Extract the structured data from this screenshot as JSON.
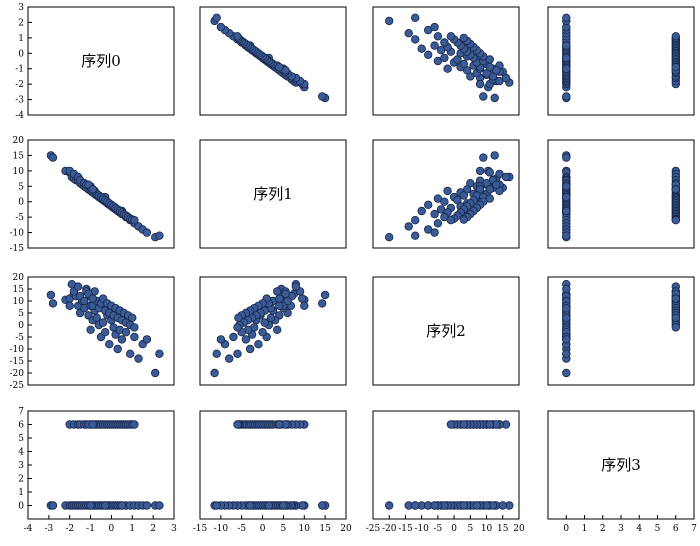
{
  "chart_data": {
    "type": "scatter",
    "layout": "pair-matrix-4x4",
    "title": "",
    "variables": [
      "序列0",
      "序列1",
      "序列2",
      "序列3"
    ],
    "grid": false,
    "ranges": [
      [
        -4,
        3
      ],
      [
        -15,
        20
      ],
      [
        -25,
        20
      ],
      [
        -1,
        7
      ]
    ],
    "ticks": [
      [
        -4,
        -3,
        -2,
        -1,
        0,
        1,
        2,
        3
      ],
      [
        -15,
        -10,
        -5,
        0,
        5,
        10,
        15,
        20
      ],
      [
        -25,
        -20,
        -15,
        -10,
        -5,
        0,
        5,
        10,
        15,
        20
      ],
      [
        0,
        1,
        2,
        3,
        4,
        5,
        6,
        7
      ]
    ],
    "point_color": "#3b5b96",
    "point_edge_color": "#16264a",
    "observations": [
      [
        -2.9,
        15.0,
        12.5,
        0
      ],
      [
        -2.8,
        14.3,
        9.0,
        0
      ],
      [
        -2.2,
        10.0,
        10.5,
        0
      ],
      [
        -2.0,
        9.5,
        11.0,
        0
      ],
      [
        -1.9,
        8.0,
        17.0,
        0
      ],
      [
        -1.8,
        7.5,
        13.0,
        0
      ],
      [
        -1.7,
        7.0,
        12.0,
        0
      ],
      [
        -1.6,
        6.8,
        8.0,
        0
      ],
      [
        -1.5,
        6.0,
        5.0,
        0
      ],
      [
        -1.4,
        5.5,
        10.0,
        0
      ],
      [
        -1.3,
        5.0,
        7.0,
        0
      ],
      [
        -1.2,
        4.5,
        15.0,
        0
      ],
      [
        -1.1,
        4.0,
        4.0,
        0
      ],
      [
        -1.0,
        3.5,
        -2.0,
        0
      ],
      [
        -0.9,
        3.0,
        2.0,
        0
      ],
      [
        -0.8,
        2.5,
        6.0,
        0
      ],
      [
        -0.7,
        2.0,
        3.0,
        0
      ],
      [
        -0.6,
        1.5,
        0.0,
        0
      ],
      [
        -0.5,
        1.0,
        -5.0,
        0
      ],
      [
        -0.4,
        0.5,
        1.0,
        0
      ],
      [
        -0.3,
        0.0,
        -3.0,
        0
      ],
      [
        -0.2,
        -0.5,
        4.0,
        0
      ],
      [
        -0.1,
        -1.0,
        -8.0,
        0
      ],
      [
        0.0,
        -1.5,
        2.0,
        0
      ],
      [
        0.1,
        -2.0,
        -1.0,
        0
      ],
      [
        0.2,
        -2.5,
        -4.0,
        0
      ],
      [
        0.3,
        -3.0,
        -10.0,
        0
      ],
      [
        0.4,
        -3.5,
        -2.0,
        0
      ],
      [
        0.5,
        -4.0,
        -6.0,
        0
      ],
      [
        0.7,
        -5.0,
        -3.0,
        0
      ],
      [
        0.9,
        -6.0,
        -12.0,
        0
      ],
      [
        1.1,
        -7.0,
        -5.0,
        0
      ],
      [
        1.3,
        -8.0,
        -14.0,
        0
      ],
      [
        1.5,
        -9.0,
        -8.0,
        0
      ],
      [
        1.7,
        -10.0,
        -6.0,
        0
      ],
      [
        2.1,
        -11.5,
        -20.0,
        0
      ],
      [
        2.3,
        -11.0,
        -12.0,
        0
      ],
      [
        -1.0,
        5.0,
        8.0,
        0
      ],
      [
        0.5,
        -3.0,
        3.0,
        0
      ],
      [
        -0.3,
        1.5,
        7.0,
        0
      ],
      [
        -2.0,
        10.0,
        8.0,
        6
      ],
      [
        -1.8,
        9.0,
        14.0,
        6
      ],
      [
        -1.6,
        8.0,
        16.0,
        6
      ],
      [
        -1.5,
        7.0,
        12.0,
        6
      ],
      [
        -1.3,
        6.0,
        10.0,
        6
      ],
      [
        -1.2,
        5.5,
        14.0,
        6
      ],
      [
        -1.0,
        4.5,
        12.0,
        6
      ],
      [
        -0.9,
        4.0,
        8.0,
        6
      ],
      [
        -0.8,
        3.5,
        14.0,
        6
      ],
      [
        -0.7,
        2.5,
        10.0,
        6
      ],
      [
        -0.6,
        2.0,
        7.0,
        6
      ],
      [
        -0.5,
        1.5,
        9.0,
        6
      ],
      [
        -0.4,
        1.0,
        11.0,
        6
      ],
      [
        -0.3,
        0.5,
        6.0,
        6
      ],
      [
        -0.2,
        0.0,
        9.0,
        6
      ],
      [
        -0.1,
        -0.5,
        5.0,
        6
      ],
      [
        0.0,
        -1.0,
        8.0,
        6
      ],
      [
        0.1,
        -1.5,
        4.0,
        6
      ],
      [
        0.2,
        -2.0,
        7.0,
        6
      ],
      [
        0.3,
        -2.5,
        3.0,
        6
      ],
      [
        0.4,
        -3.0,
        6.0,
        6
      ],
      [
        0.5,
        -3.5,
        2.0,
        6
      ],
      [
        0.6,
        -4.0,
        5.0,
        6
      ],
      [
        0.7,
        -4.5,
        1.0,
        6
      ],
      [
        0.8,
        -5.0,
        4.0,
        6
      ],
      [
        0.9,
        -5.5,
        0.0,
        6
      ],
      [
        1.0,
        -5.8,
        3.0,
        6
      ],
      [
        1.1,
        -6.0,
        -1.0,
        6
      ],
      [
        -1.1,
        5.5,
        13.0,
        6
      ],
      [
        -0.9,
        4.0,
        11.0,
        6
      ]
    ]
  }
}
